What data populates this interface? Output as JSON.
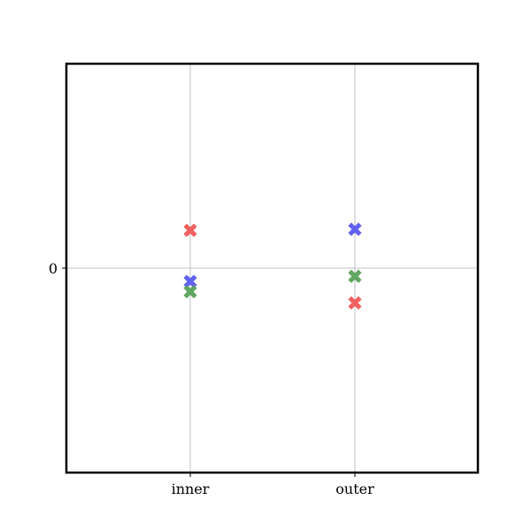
{
  "chart_data": {
    "type": "scatter",
    "categories": [
      "inner",
      "outer"
    ],
    "y_ticks": [
      {
        "value": 0,
        "label": "0"
      }
    ],
    "ylim": [
      -1,
      1
    ],
    "grid": true,
    "marker": "X",
    "colors": {
      "red": "#f25a5a",
      "blue": "#5a5af2",
      "green": "#5aa25a",
      "grid": "#b0b0b0",
      "frame": "#000000"
    },
    "series": [
      {
        "color_key": "red",
        "values": [
          0.185,
          -0.17
        ]
      },
      {
        "color_key": "blue",
        "values": [
          -0.065,
          0.19
        ]
      },
      {
        "color_key": "green",
        "values": [
          -0.115,
          -0.04
        ]
      }
    ]
  }
}
